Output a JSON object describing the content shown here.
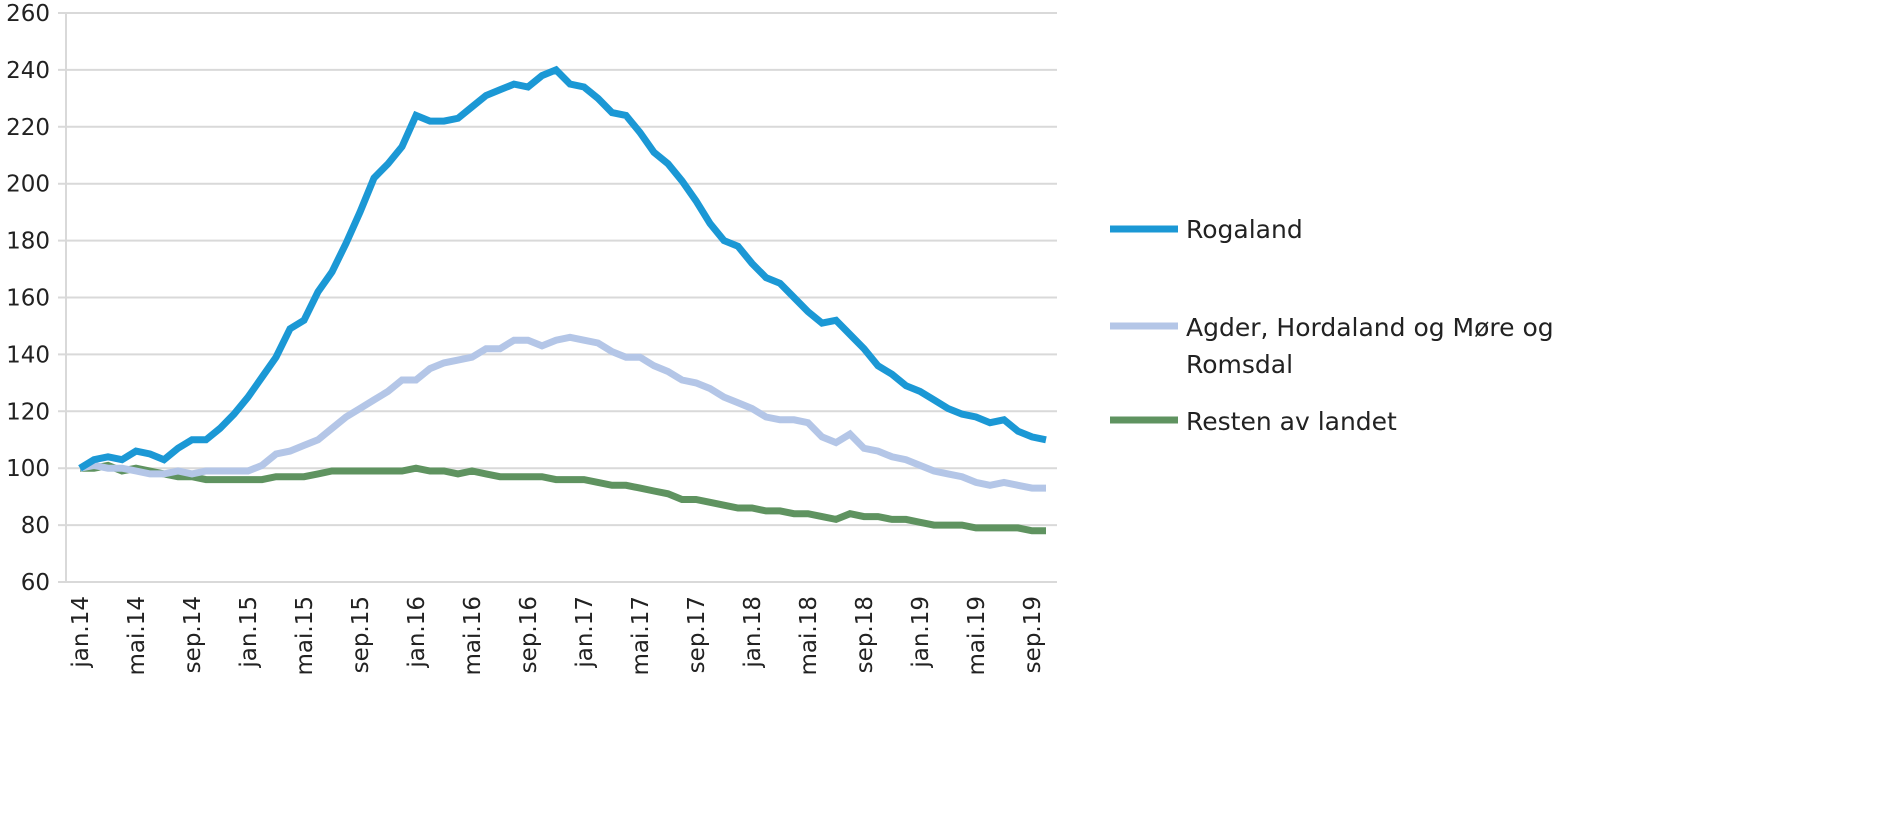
{
  "chart_data": {
    "type": "line",
    "title": "",
    "xlabel": "",
    "ylabel": "",
    "ylim": [
      60,
      260
    ],
    "yticks": [
      60,
      80,
      100,
      120,
      140,
      160,
      180,
      200,
      220,
      240,
      260
    ],
    "x_tick_labels": [
      "jan.14",
      "mai.14",
      "sep.14",
      "jan.15",
      "mai.15",
      "sep.15",
      "jan.16",
      "mai.16",
      "sep.16",
      "jan.17",
      "mai.17",
      "sep.17",
      "jan.18",
      "mai.18",
      "sep.18",
      "jan.19",
      "mai.19",
      "sep.19"
    ],
    "x_start": "jan.14",
    "x_step": "month",
    "grid": true,
    "legend_position": "right",
    "series": [
      {
        "name": "Rogaland",
        "color": "#1b98d5",
        "values": [
          100,
          103,
          104,
          103,
          106,
          105,
          103,
          107,
          110,
          110,
          114,
          119,
          125,
          132,
          139,
          149,
          152,
          162,
          169,
          179,
          190,
          202,
          207,
          213,
          224,
          222,
          222,
          223,
          227,
          231,
          233,
          235,
          234,
          238,
          240,
          235,
          234,
          230,
          225,
          224,
          218,
          211,
          207,
          201,
          194,
          186,
          180,
          178,
          172,
          167,
          165,
          160,
          155,
          151,
          152,
          147,
          142,
          136,
          133,
          129,
          127,
          124,
          121,
          119,
          118,
          116,
          117,
          113,
          111,
          110
        ]
      },
      {
        "name": "Agder, Hordaland og Møre og Romsdal",
        "name_lines": [
          "Agder, Hordaland og Møre og",
          "Romsdal"
        ],
        "color": "#b4c6e7",
        "values": [
          100,
          101,
          100,
          100,
          99,
          98,
          98,
          99,
          98,
          99,
          99,
          99,
          99,
          101,
          105,
          106,
          108,
          110,
          114,
          118,
          121,
          124,
          127,
          131,
          131,
          135,
          137,
          138,
          139,
          142,
          142,
          145,
          145,
          143,
          145,
          146,
          145,
          144,
          141,
          139,
          139,
          136,
          134,
          131,
          130,
          128,
          125,
          123,
          121,
          118,
          117,
          117,
          116,
          111,
          109,
          112,
          107,
          106,
          104,
          103,
          101,
          99,
          98,
          97,
          95,
          94,
          95,
          94,
          93,
          93
        ]
      },
      {
        "name": "Resten av landet",
        "color": "#5f9360",
        "values": [
          100,
          100,
          101,
          99,
          100,
          99,
          98,
          97,
          97,
          96,
          96,
          96,
          96,
          96,
          97,
          97,
          97,
          98,
          99,
          99,
          99,
          99,
          99,
          99,
          100,
          99,
          99,
          98,
          99,
          98,
          97,
          97,
          97,
          97,
          96,
          96,
          96,
          95,
          94,
          94,
          93,
          92,
          91,
          89,
          89,
          88,
          87,
          86,
          86,
          85,
          85,
          84,
          84,
          83,
          82,
          84,
          83,
          83,
          82,
          82,
          81,
          80,
          80,
          80,
          79,
          79,
          79,
          79,
          78,
          78
        ]
      }
    ]
  }
}
